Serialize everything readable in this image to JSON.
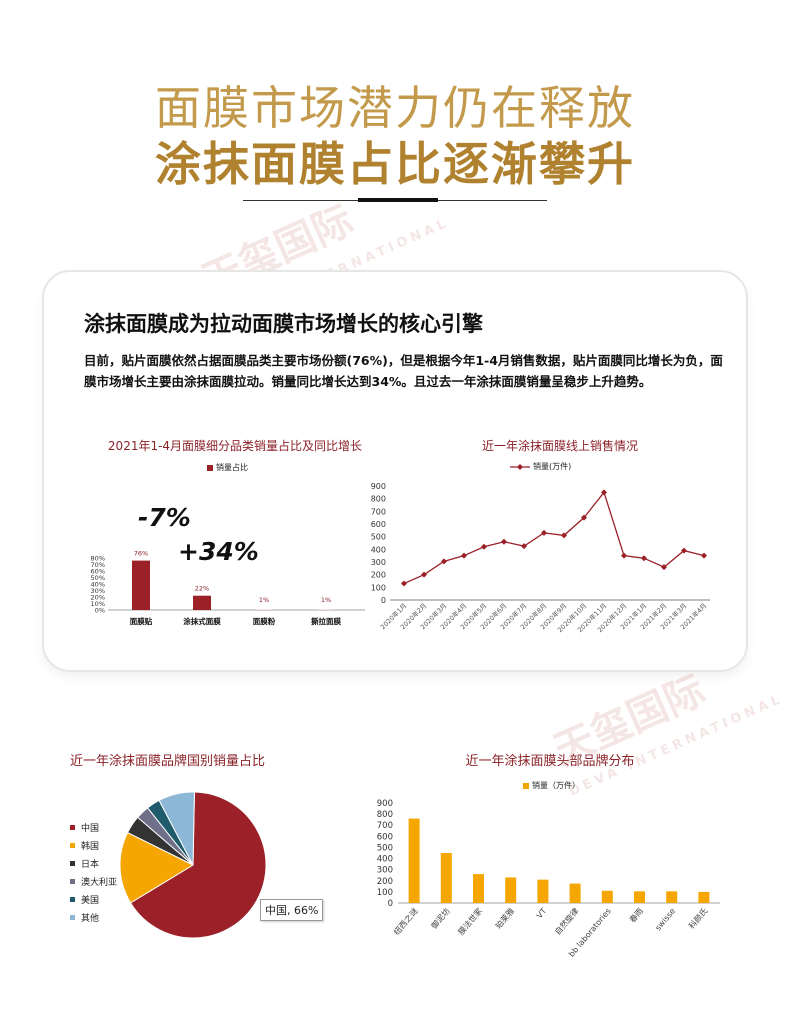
{
  "page": {
    "title_line1": "面膜市场潜力仍在释放",
    "title_line2": "涂抹面膜占比逐渐攀升",
    "watermark_cn": "天玺国际",
    "watermark_en": "DEVA INTERNATIONAL"
  },
  "card": {
    "heading": "涂抹面膜成为拉动面膜市场增长的核心引擎",
    "paragraph": "目前，贴片面膜依然占据面膜品类主要市场份额(76%)，但是根据今年1-4月销售数据，贴片面膜同比增长为负，面膜市场增长主要由涂抹面膜拉动。销量同比增长达到34%。且过去一年涂抹面膜销量呈稳步上升趋势。"
  },
  "colors": {
    "dark_red": "#9b2027",
    "orange": "#f5a600",
    "gold": "#b0822f"
  },
  "chart_data": [
    {
      "type": "bar",
      "title": "2021年1-4月面膜细分品类销量占比及同比增长",
      "legend": "销量占比",
      "categories": [
        "面膜贴",
        "涂抹式面膜",
        "面膜粉",
        "撕拉面膜"
      ],
      "values": [
        76,
        22,
        1,
        1
      ],
      "data_labels": [
        "76%",
        "22%",
        "1%",
        "1%"
      ],
      "annotations": [
        "-7%",
        "+34%"
      ],
      "yticks": [
        "0%",
        "10%",
        "20%",
        "30%",
        "40%",
        "50%",
        "60%",
        "70%",
        "80%"
      ],
      "ylim": [
        0,
        80
      ]
    },
    {
      "type": "line",
      "title": "近一年涂抹面膜线上销售情况",
      "legend": "销量(万件)",
      "categories": [
        "2020年1月",
        "2020年2月",
        "2020年3月",
        "2020年4月",
        "2020年5月",
        "2020年6月",
        "2020年7月",
        "2020年8月",
        "2020年9月",
        "2020年10月",
        "2020年11月",
        "2020年12月",
        "2021年1月",
        "2021年2月",
        "2021年3月",
        "2021年4月"
      ],
      "values": [
        130,
        200,
        305,
        350,
        420,
        460,
        425,
        530,
        510,
        650,
        850,
        350,
        330,
        260,
        390,
        350
      ],
      "yticks": [
        "0",
        "100",
        "200",
        "300",
        "400",
        "500",
        "600",
        "700",
        "800",
        "900"
      ],
      "ylim": [
        0,
        900
      ]
    },
    {
      "type": "pie",
      "title": "近一年涂抹面膜品牌国别销量占比",
      "labels": [
        "中国",
        "韩国",
        "日本",
        "澳大利亚",
        "美国",
        "其他"
      ],
      "values": [
        66,
        16,
        4,
        3,
        3,
        8
      ],
      "colors": [
        "#9b2027",
        "#f5a600",
        "#333333",
        "#6f6f8a",
        "#1f5b6b",
        "#8db7d6"
      ],
      "callout": "中国, 66%"
    },
    {
      "type": "bar",
      "title": "近一年涂抹面膜头部品牌分布",
      "legend": "销量（万件）",
      "categories": [
        "纽西之谜",
        "御泥坊",
        "膜法世家",
        "珀莱雅",
        "VT",
        "自然旋律",
        "bb laboratories",
        "春雨",
        "swisse",
        "科颜氏"
      ],
      "values": [
        760,
        450,
        260,
        230,
        210,
        175,
        110,
        105,
        105,
        100
      ],
      "yticks": [
        "0",
        "100",
        "200",
        "300",
        "400",
        "500",
        "600",
        "700",
        "800",
        "900"
      ],
      "ylim": [
        0,
        900
      ]
    }
  ]
}
